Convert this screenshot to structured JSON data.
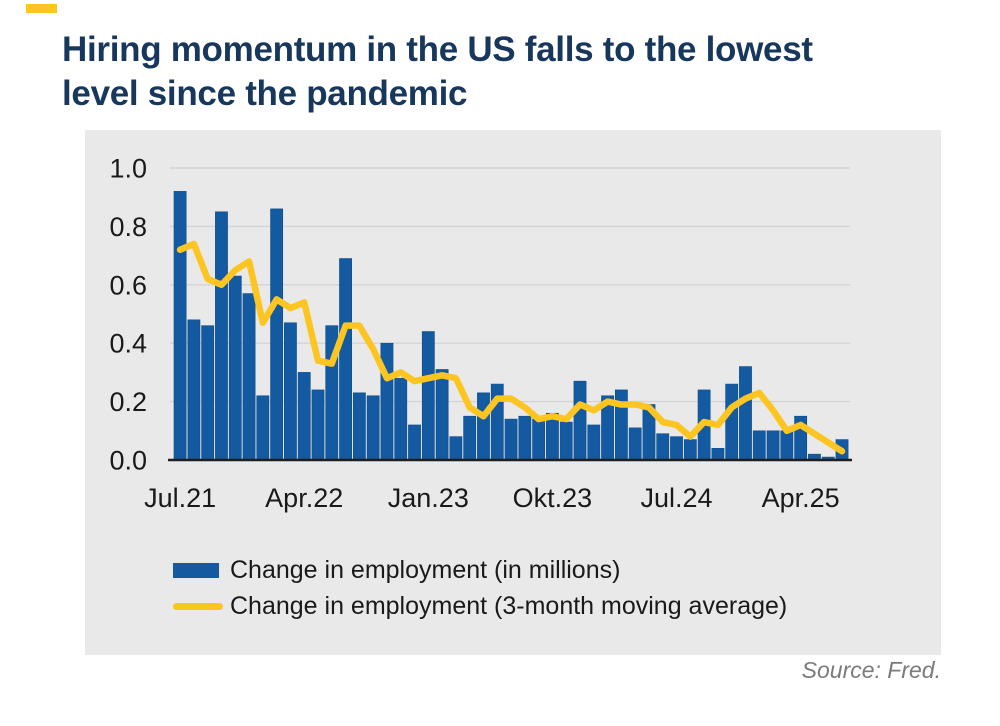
{
  "page": {
    "title_line1": "Hiring momentum in the US falls to the lowest",
    "title_line2": "level since the pandemic",
    "source": "Source: Fred."
  },
  "colors": {
    "title": "#17375d",
    "bar": "#145aa0",
    "bar_stroke": "#0f4d8c",
    "line": "#fdc521",
    "accent": "#fdc521",
    "panel_bg": "#e9e9e9",
    "grid": "#d4d4d4",
    "axis": "#1f1f1f",
    "tick_text": "#1a1a1a",
    "source_text": "#7b7b7b"
  },
  "legend": [
    {
      "swatch": "bar",
      "label": "Change in employment (in millions)"
    },
    {
      "swatch": "line",
      "label": "Change in employment (3-month moving average)"
    }
  ],
  "chart_data": {
    "type": "bar",
    "title": "Hiring momentum in the US falls to the lowest level since the pandemic",
    "xlabel": "",
    "ylabel": "",
    "ylim": [
      0,
      1.0
    ],
    "grid": "horizontal",
    "legend_position": "bottom",
    "x": [
      "Jul.21",
      "Aug.21",
      "Sep.21",
      "Okt.21",
      "Nov.21",
      "Dez.21",
      "Jan.22",
      "Feb.22",
      "Mär.22",
      "Apr.22",
      "Mai.22",
      "Jun.22",
      "Jul.22",
      "Aug.22",
      "Sep.22",
      "Okt.22",
      "Nov.22",
      "Dez.22",
      "Jan.23",
      "Feb.23",
      "Mär.23",
      "Apr.23",
      "Mai.23",
      "Jun.23",
      "Jul.23",
      "Aug.23",
      "Sep.23",
      "Okt.23",
      "Nov.23",
      "Dez.23",
      "Jan.24",
      "Feb.24",
      "Mär.24",
      "Apr.24",
      "Mai.24",
      "Jun.24",
      "Jul.24",
      "Aug.24",
      "Sep.24",
      "Okt.24",
      "Nov.24",
      "Dez.24",
      "Jan.25",
      "Feb.25",
      "Mär.25",
      "Apr.25",
      "Mai.25",
      "Jun.25",
      "Jul.25"
    ],
    "series": [
      {
        "name": "Change in employment (in millions)",
        "type": "bar",
        "values": [
          0.92,
          0.48,
          0.46,
          0.85,
          0.63,
          0.57,
          0.22,
          0.86,
          0.47,
          0.3,
          0.24,
          0.46,
          0.69,
          0.23,
          0.22,
          0.4,
          0.28,
          0.12,
          0.44,
          0.31,
          0.08,
          0.15,
          0.23,
          0.26,
          0.14,
          0.15,
          0.14,
          0.16,
          0.13,
          0.27,
          0.12,
          0.22,
          0.24,
          0.11,
          0.19,
          0.09,
          0.08,
          0.07,
          0.24,
          0.04,
          0.26,
          0.32,
          0.1,
          0.1,
          0.1,
          0.15,
          0.02,
          0.01,
          0.07
        ]
      },
      {
        "name": "Change in employment (3-month moving average)",
        "type": "line",
        "values": [
          0.72,
          0.74,
          0.62,
          0.6,
          0.65,
          0.68,
          0.47,
          0.55,
          0.52,
          0.54,
          0.34,
          0.33,
          0.46,
          0.46,
          0.38,
          0.28,
          0.3,
          0.27,
          0.28,
          0.29,
          0.28,
          0.18,
          0.15,
          0.21,
          0.21,
          0.18,
          0.14,
          0.15,
          0.14,
          0.19,
          0.17,
          0.2,
          0.19,
          0.19,
          0.18,
          0.13,
          0.12,
          0.08,
          0.13,
          0.12,
          0.18,
          0.21,
          0.23,
          0.17,
          0.1,
          0.12,
          0.09,
          0.06,
          0.03
        ]
      }
    ],
    "y_tick_labels": [
      "0.0",
      "0.2",
      "0.4",
      "0.6",
      "0.8",
      "1.0"
    ],
    "x_ticks": [
      {
        "index": 0,
        "label": "Jul.21"
      },
      {
        "index": 9,
        "label": "Apr.22"
      },
      {
        "index": 18,
        "label": "Jan.23"
      },
      {
        "index": 27,
        "label": "Okt.23"
      },
      {
        "index": 36,
        "label": "Jul.24"
      },
      {
        "index": 45,
        "label": "Apr.25"
      }
    ]
  }
}
